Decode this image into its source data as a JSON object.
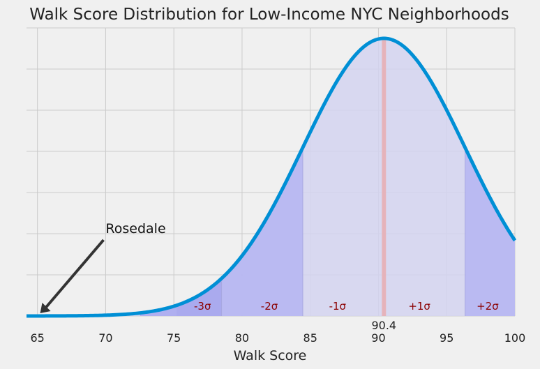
{
  "chart_data": {
    "type": "area",
    "title": "Walk Score Distribution for Low-Income NYC Neighborhoods",
    "xlabel": "Walk Score",
    "ylabel": "",
    "xlim": [
      64.2,
      100
    ],
    "x_ticks": [
      65,
      70,
      75,
      80,
      85,
      90,
      95,
      100
    ],
    "grid": true,
    "distribution": {
      "kind": "normal",
      "mean": 90.4,
      "std": 5.95,
      "mean_label": "90.4"
    },
    "sigma_bands": [
      {
        "label": "-3σ",
        "x_range": [
          72.55,
          78.5
        ],
        "label_x": 77.1
      },
      {
        "label": "-2σ",
        "x_range": [
          78.5,
          84.45
        ],
        "label_x": 82.0
      },
      {
        "label": "-1σ",
        "x_range": [
          84.45,
          90.4
        ],
        "label_x": 87.0
      },
      {
        "label": "+1σ",
        "x_range": [
          90.4,
          96.35
        ],
        "label_x": 93.0
      },
      {
        "label": "+2σ",
        "x_range": [
          96.35,
          100
        ],
        "label_x": 98.0
      }
    ],
    "annotations": [
      {
        "text": "Rosedale",
        "x": 65.2,
        "text_x": 70.0
      }
    ],
    "colors": {
      "curve": "#008fd5",
      "band_light": "#d3d3f0",
      "band_dark": "#b3b3f2",
      "band_darker": "#9f9fee",
      "mean_line": "#e8b0b5",
      "arrow": "#333333",
      "sigma_label": "#8b0000"
    }
  }
}
